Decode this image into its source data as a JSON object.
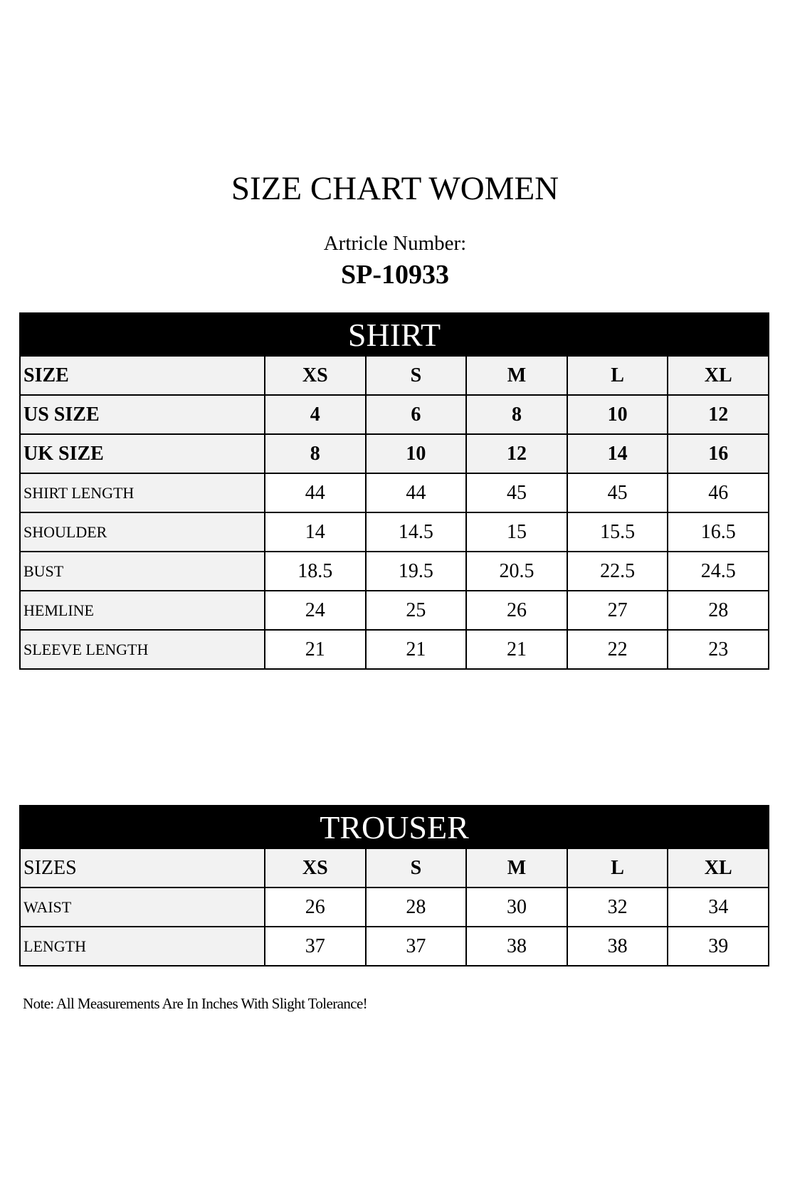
{
  "title": "SIZE CHART WOMEN",
  "article_label": "Artricle Number:",
  "article_number": "SP-10933",
  "shirt": {
    "heading": "SHIRT",
    "header_rows": [
      {
        "label": "SIZE",
        "values": [
          "XS",
          "S",
          "M",
          "L",
          "XL"
        ]
      },
      {
        "label": "US SIZE",
        "values": [
          "4",
          "6",
          "8",
          "10",
          "12"
        ]
      },
      {
        "label": "UK SIZE",
        "values": [
          "8",
          "10",
          "12",
          "14",
          "16"
        ]
      }
    ],
    "rows": [
      {
        "label": "SHIRT LENGTH",
        "values": [
          "44",
          "44",
          "45",
          "45",
          "46"
        ]
      },
      {
        "label": "SHOULDER",
        "values": [
          "14",
          "14.5",
          "15",
          "15.5",
          "16.5"
        ]
      },
      {
        "label": "BUST",
        "values": [
          "18.5",
          "19.5",
          "20.5",
          "22.5",
          "24.5"
        ]
      },
      {
        "label": "HEMLINE",
        "values": [
          "24",
          "25",
          "26",
          "27",
          "28"
        ]
      },
      {
        "label": "SLEEVE LENGTH",
        "values": [
          "21",
          "21",
          "21",
          "22",
          "23"
        ]
      }
    ]
  },
  "trouser": {
    "heading": "TROUSER",
    "header": {
      "label": "SIZES",
      "values": [
        "XS",
        "S",
        "M",
        "L",
        "XL"
      ]
    },
    "rows": [
      {
        "label": "WAIST",
        "values": [
          "26",
          "28",
          "30",
          "32",
          "34"
        ]
      },
      {
        "label": "LENGTH",
        "values": [
          "37",
          "37",
          "38",
          "38",
          "39"
        ]
      }
    ]
  },
  "note": "Note: All Measurements Are In Inches With Slight Tolerance!"
}
